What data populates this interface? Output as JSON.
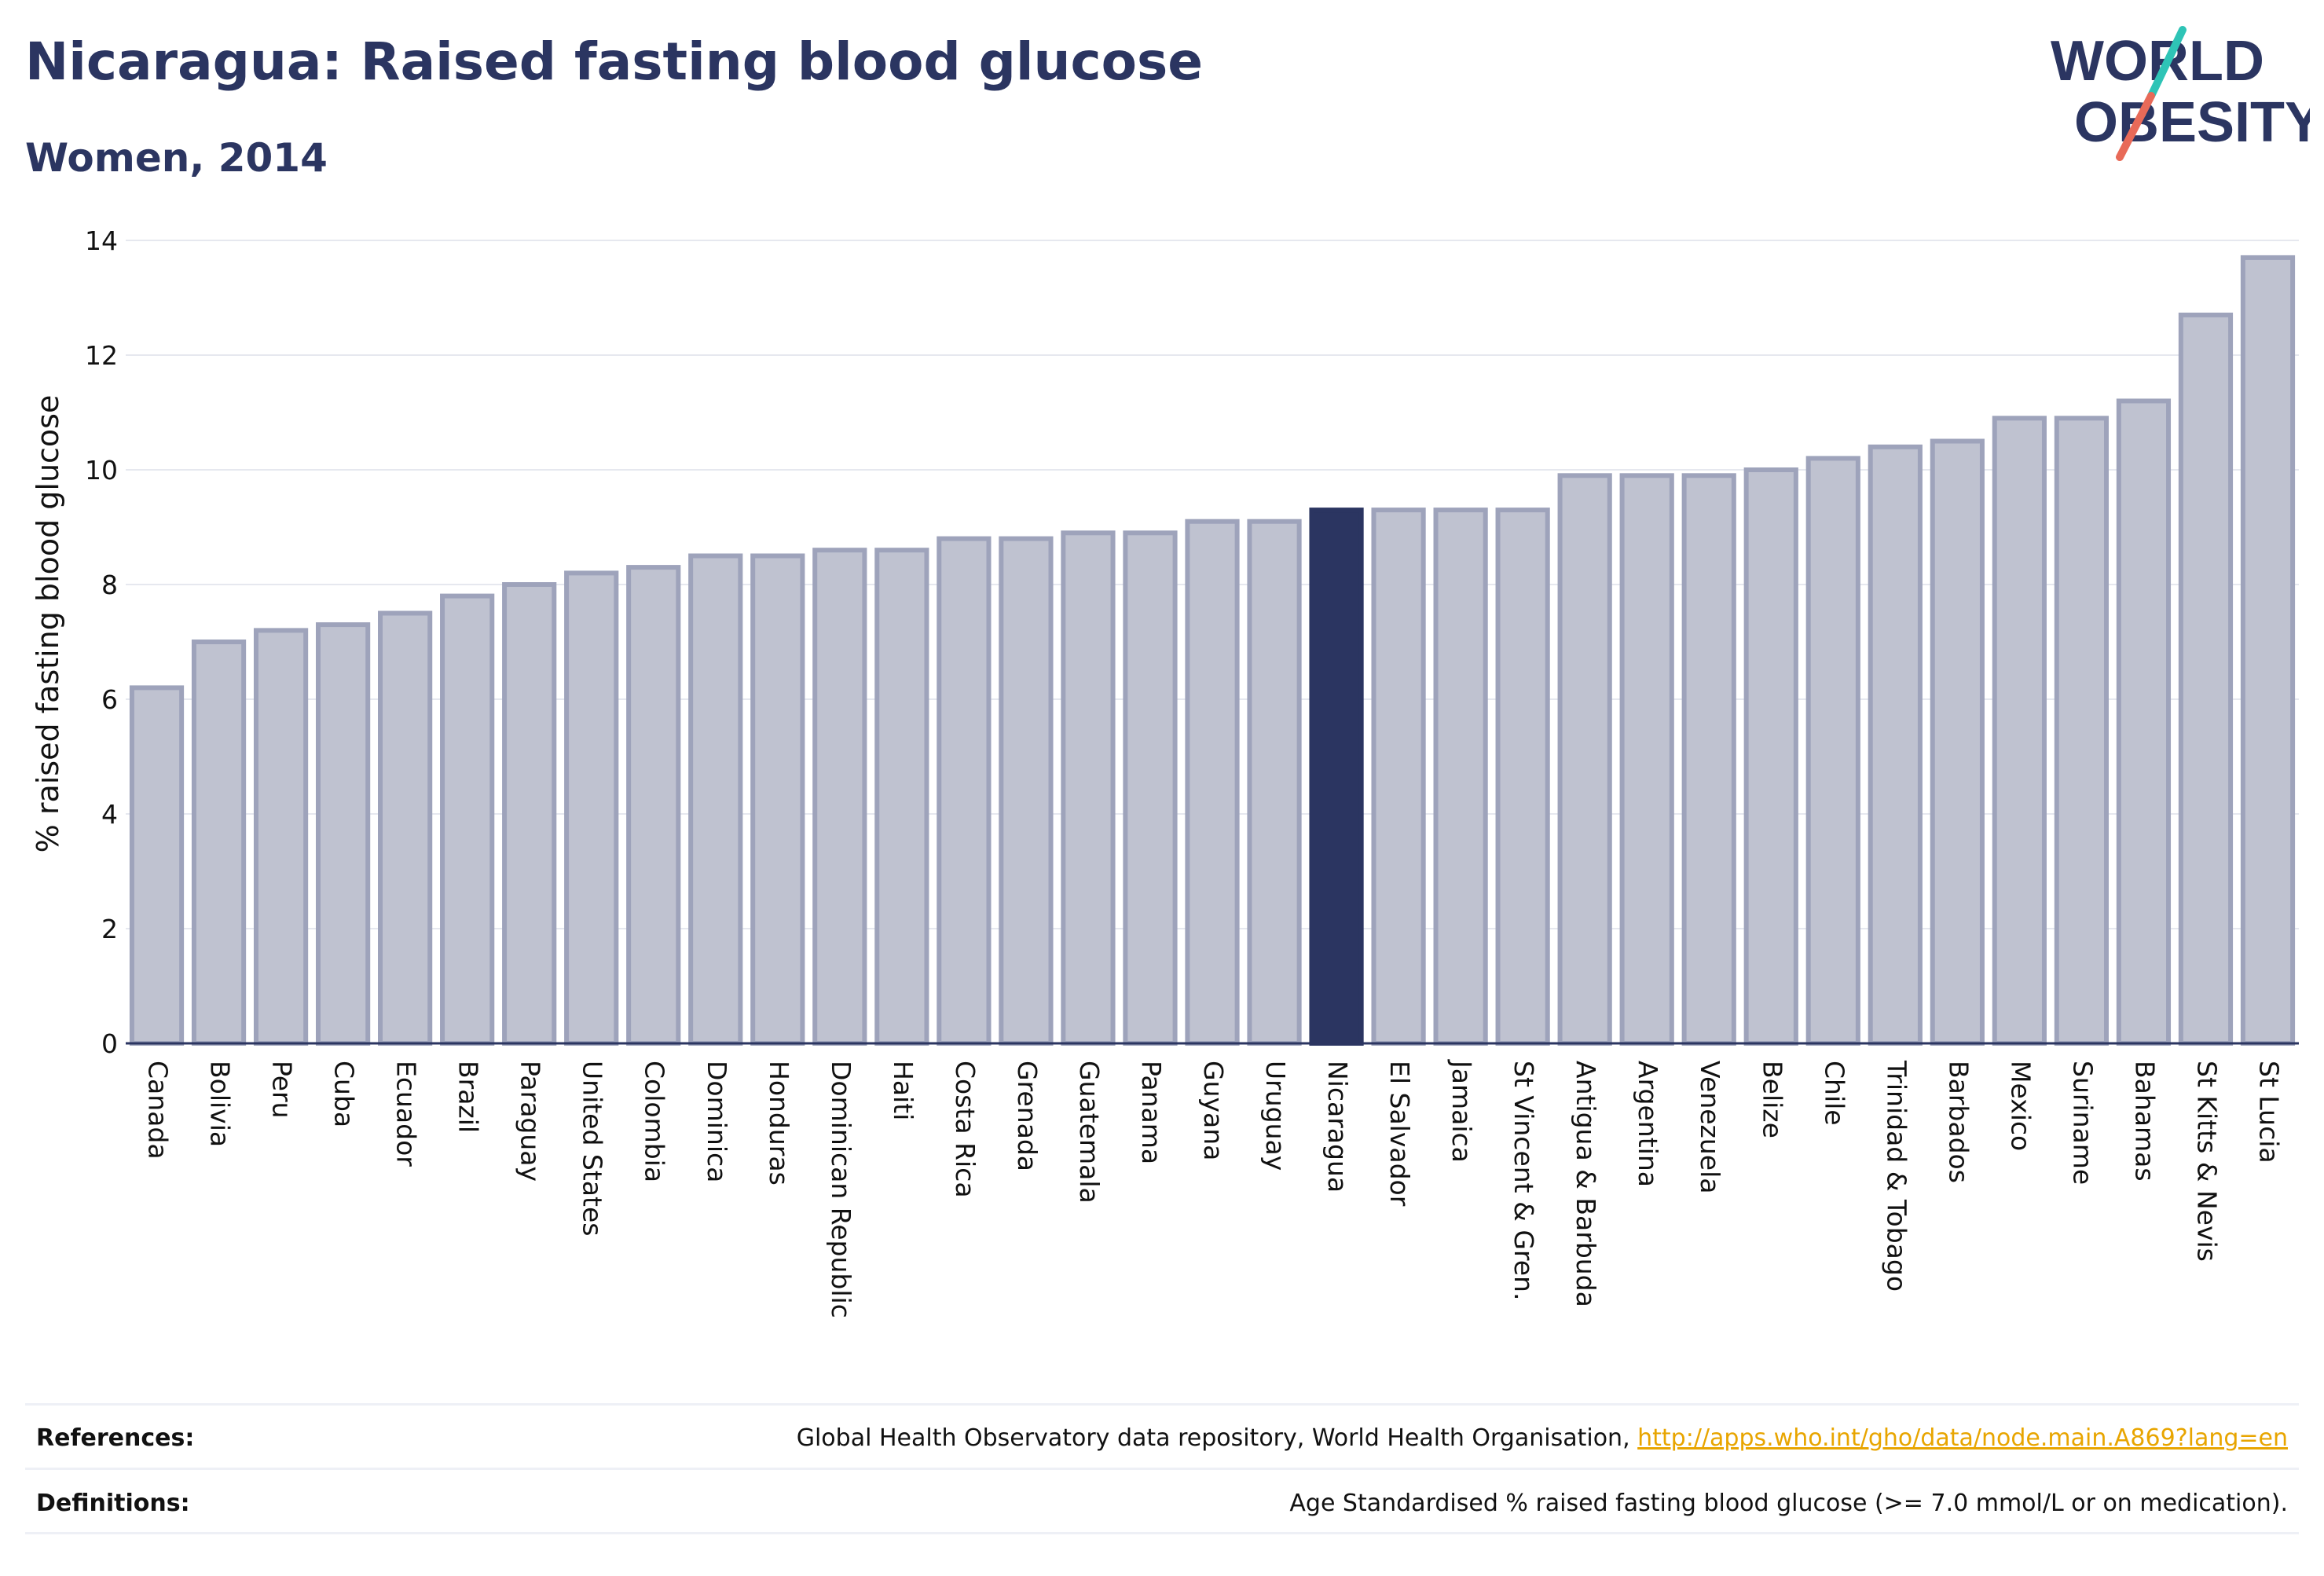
{
  "title": "Nicaragua: Raised fasting blood glucose",
  "subtitle": "Women, 2014",
  "logo": {
    "line1": "WORLD",
    "line2": "OBESITY"
  },
  "colors": {
    "highlight": "#2b3561",
    "bar_fill": "#bfc2d0",
    "bar_stroke": "#9ea3bb",
    "text": "#2b3561",
    "link": "#e8a500"
  },
  "chart_data": {
    "type": "bar",
    "ylabel": "% raised fasting blood glucose",
    "ylim": [
      0,
      14
    ],
    "yticks": [
      0,
      2,
      4,
      6,
      8,
      10,
      12,
      14
    ],
    "grid": true,
    "highlight": "Nicaragua",
    "categories": [
      "Canada",
      "Bolivia",
      "Peru",
      "Cuba",
      "Ecuador",
      "Brazil",
      "Paraguay",
      "United States",
      "Colombia",
      "Dominica",
      "Honduras",
      "Dominican Republic",
      "Haiti",
      "Costa Rica",
      "Grenada",
      "Guatemala",
      "Panama",
      "Guyana",
      "Uruguay",
      "Nicaragua",
      "El Salvador",
      "Jamaica",
      "St Vincent & Gren.",
      "Antigua & Barbuda",
      "Argentina",
      "Venezuela",
      "Belize",
      "Chile",
      "Trinidad & Tobago",
      "Barbados",
      "Mexico",
      "Suriname",
      "Bahamas",
      "St Kitts & Nevis",
      "St Lucia"
    ],
    "values": [
      6.2,
      7.0,
      7.2,
      7.3,
      7.5,
      7.8,
      8.0,
      8.2,
      8.3,
      8.5,
      8.5,
      8.6,
      8.6,
      8.8,
      8.8,
      8.9,
      8.9,
      9.1,
      9.1,
      9.3,
      9.3,
      9.3,
      9.3,
      9.9,
      9.9,
      9.9,
      10.0,
      10.2,
      10.4,
      10.5,
      10.9,
      10.9,
      11.2,
      12.7,
      13.7
    ]
  },
  "footer": {
    "references_label": "References:",
    "references_text": "Global Health Observatory data repository, World Health Organisation, ",
    "references_link": "http://apps.who.int/gho/data/node.main.A869?lang=en",
    "definitions_label": "Definitions:",
    "definitions_text": "Age Standardised % raised fasting blood glucose (>= 7.0 mmol/L or on medication)."
  }
}
